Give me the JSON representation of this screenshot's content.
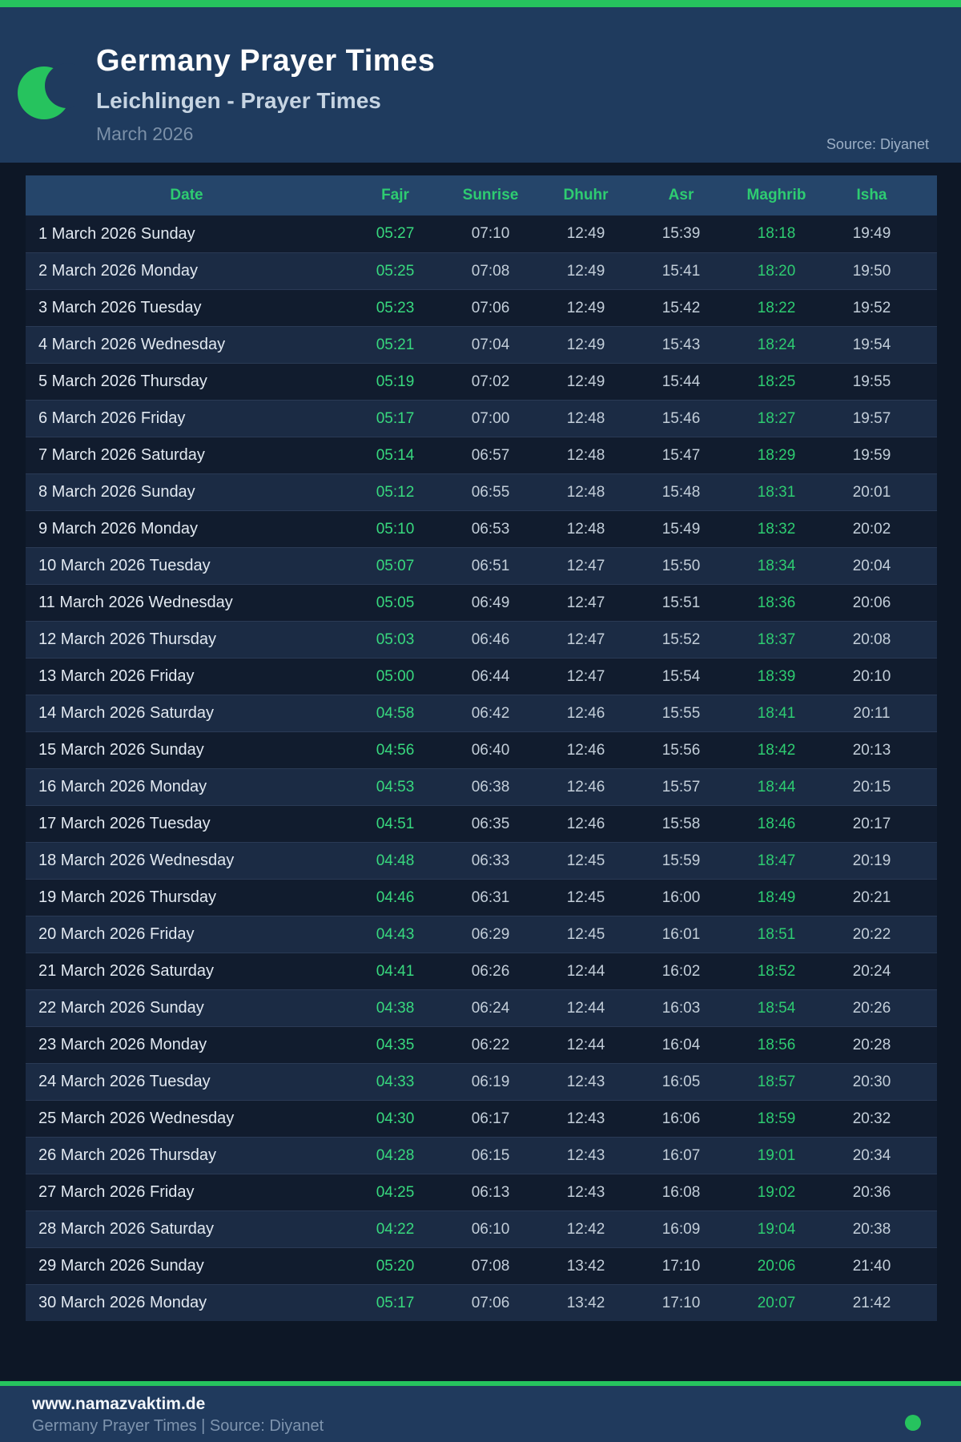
{
  "theme": {
    "accent_green": "#26c35e",
    "table_header_text_green": "#2ecc71",
    "fajr_green": "#38d97e",
    "maghrib_green": "#2ecc71",
    "page_bg": "#0d1726",
    "header_bg": "#1f3b5e",
    "table_header_bg": "#25456a",
    "row_odd_bg": "#111c2e",
    "row_even_bg": "#1b2b44",
    "footer_bg": "#203a5d"
  },
  "header": {
    "title": "Germany Prayer Times",
    "subtitle": "Leichlingen - Prayer Times",
    "month": "March 2026",
    "source": "Source: Diyanet",
    "icon": "crescent-moon-icon"
  },
  "table": {
    "columns": [
      "Date",
      "Fajr",
      "Sunrise",
      "Dhuhr",
      "Asr",
      "Maghrib",
      "Isha"
    ],
    "rows": [
      {
        "date": "1 March 2026 Sunday",
        "fajr": "05:27",
        "sunrise": "07:10",
        "dhuhr": "12:49",
        "asr": "15:39",
        "maghrib": "18:18",
        "isha": "19:49"
      },
      {
        "date": "2 March 2026 Monday",
        "fajr": "05:25",
        "sunrise": "07:08",
        "dhuhr": "12:49",
        "asr": "15:41",
        "maghrib": "18:20",
        "isha": "19:50"
      },
      {
        "date": "3 March 2026 Tuesday",
        "fajr": "05:23",
        "sunrise": "07:06",
        "dhuhr": "12:49",
        "asr": "15:42",
        "maghrib": "18:22",
        "isha": "19:52"
      },
      {
        "date": "4 March 2026 Wednesday",
        "fajr": "05:21",
        "sunrise": "07:04",
        "dhuhr": "12:49",
        "asr": "15:43",
        "maghrib": "18:24",
        "isha": "19:54"
      },
      {
        "date": "5 March 2026 Thursday",
        "fajr": "05:19",
        "sunrise": "07:02",
        "dhuhr": "12:49",
        "asr": "15:44",
        "maghrib": "18:25",
        "isha": "19:55"
      },
      {
        "date": "6 March 2026 Friday",
        "fajr": "05:17",
        "sunrise": "07:00",
        "dhuhr": "12:48",
        "asr": "15:46",
        "maghrib": "18:27",
        "isha": "19:57"
      },
      {
        "date": "7 March 2026 Saturday",
        "fajr": "05:14",
        "sunrise": "06:57",
        "dhuhr": "12:48",
        "asr": "15:47",
        "maghrib": "18:29",
        "isha": "19:59"
      },
      {
        "date": "8 March 2026 Sunday",
        "fajr": "05:12",
        "sunrise": "06:55",
        "dhuhr": "12:48",
        "asr": "15:48",
        "maghrib": "18:31",
        "isha": "20:01"
      },
      {
        "date": "9 March 2026 Monday",
        "fajr": "05:10",
        "sunrise": "06:53",
        "dhuhr": "12:48",
        "asr": "15:49",
        "maghrib": "18:32",
        "isha": "20:02"
      },
      {
        "date": "10 March 2026 Tuesday",
        "fajr": "05:07",
        "sunrise": "06:51",
        "dhuhr": "12:47",
        "asr": "15:50",
        "maghrib": "18:34",
        "isha": "20:04"
      },
      {
        "date": "11 March 2026 Wednesday",
        "fajr": "05:05",
        "sunrise": "06:49",
        "dhuhr": "12:47",
        "asr": "15:51",
        "maghrib": "18:36",
        "isha": "20:06"
      },
      {
        "date": "12 March 2026 Thursday",
        "fajr": "05:03",
        "sunrise": "06:46",
        "dhuhr": "12:47",
        "asr": "15:52",
        "maghrib": "18:37",
        "isha": "20:08"
      },
      {
        "date": "13 March 2026 Friday",
        "fajr": "05:00",
        "sunrise": "06:44",
        "dhuhr": "12:47",
        "asr": "15:54",
        "maghrib": "18:39",
        "isha": "20:10"
      },
      {
        "date": "14 March 2026 Saturday",
        "fajr": "04:58",
        "sunrise": "06:42",
        "dhuhr": "12:46",
        "asr": "15:55",
        "maghrib": "18:41",
        "isha": "20:11"
      },
      {
        "date": "15 March 2026 Sunday",
        "fajr": "04:56",
        "sunrise": "06:40",
        "dhuhr": "12:46",
        "asr": "15:56",
        "maghrib": "18:42",
        "isha": "20:13"
      },
      {
        "date": "16 March 2026 Monday",
        "fajr": "04:53",
        "sunrise": "06:38",
        "dhuhr": "12:46",
        "asr": "15:57",
        "maghrib": "18:44",
        "isha": "20:15"
      },
      {
        "date": "17 March 2026 Tuesday",
        "fajr": "04:51",
        "sunrise": "06:35",
        "dhuhr": "12:46",
        "asr": "15:58",
        "maghrib": "18:46",
        "isha": "20:17"
      },
      {
        "date": "18 March 2026 Wednesday",
        "fajr": "04:48",
        "sunrise": "06:33",
        "dhuhr": "12:45",
        "asr": "15:59",
        "maghrib": "18:47",
        "isha": "20:19"
      },
      {
        "date": "19 March 2026 Thursday",
        "fajr": "04:46",
        "sunrise": "06:31",
        "dhuhr": "12:45",
        "asr": "16:00",
        "maghrib": "18:49",
        "isha": "20:21"
      },
      {
        "date": "20 March 2026 Friday",
        "fajr": "04:43",
        "sunrise": "06:29",
        "dhuhr": "12:45",
        "asr": "16:01",
        "maghrib": "18:51",
        "isha": "20:22"
      },
      {
        "date": "21 March 2026 Saturday",
        "fajr": "04:41",
        "sunrise": "06:26",
        "dhuhr": "12:44",
        "asr": "16:02",
        "maghrib": "18:52",
        "isha": "20:24"
      },
      {
        "date": "22 March 2026 Sunday",
        "fajr": "04:38",
        "sunrise": "06:24",
        "dhuhr": "12:44",
        "asr": "16:03",
        "maghrib": "18:54",
        "isha": "20:26"
      },
      {
        "date": "23 March 2026 Monday",
        "fajr": "04:35",
        "sunrise": "06:22",
        "dhuhr": "12:44",
        "asr": "16:04",
        "maghrib": "18:56",
        "isha": "20:28"
      },
      {
        "date": "24 March 2026 Tuesday",
        "fajr": "04:33",
        "sunrise": "06:19",
        "dhuhr": "12:43",
        "asr": "16:05",
        "maghrib": "18:57",
        "isha": "20:30"
      },
      {
        "date": "25 March 2026 Wednesday",
        "fajr": "04:30",
        "sunrise": "06:17",
        "dhuhr": "12:43",
        "asr": "16:06",
        "maghrib": "18:59",
        "isha": "20:32"
      },
      {
        "date": "26 March 2026 Thursday",
        "fajr": "04:28",
        "sunrise": "06:15",
        "dhuhr": "12:43",
        "asr": "16:07",
        "maghrib": "19:01",
        "isha": "20:34"
      },
      {
        "date": "27 March 2026 Friday",
        "fajr": "04:25",
        "sunrise": "06:13",
        "dhuhr": "12:43",
        "asr": "16:08",
        "maghrib": "19:02",
        "isha": "20:36"
      },
      {
        "date": "28 March 2026 Saturday",
        "fajr": "04:22",
        "sunrise": "06:10",
        "dhuhr": "12:42",
        "asr": "16:09",
        "maghrib": "19:04",
        "isha": "20:38"
      },
      {
        "date": "29 March 2026 Sunday",
        "fajr": "05:20",
        "sunrise": "07:08",
        "dhuhr": "13:42",
        "asr": "17:10",
        "maghrib": "20:06",
        "isha": "21:40"
      },
      {
        "date": "30 March 2026 Monday",
        "fajr": "05:17",
        "sunrise": "07:06",
        "dhuhr": "13:42",
        "asr": "17:10",
        "maghrib": "20:07",
        "isha": "21:42"
      }
    ]
  },
  "footer": {
    "site": "www.namazvaktim.de",
    "tagline": "Germany Prayer Times | Source: Diyanet"
  }
}
